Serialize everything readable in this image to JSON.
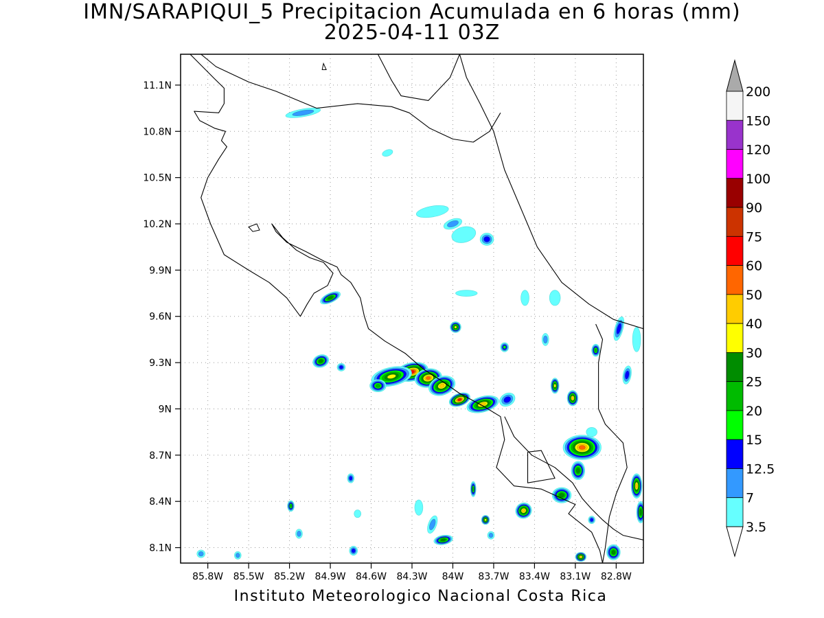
{
  "title": {
    "line1": "IMN/SARAPIQUI_5 Precipitacion Acumulada en 6 horas (mm)",
    "line2": "2025-04-11 03Z"
  },
  "footer": "Instituto Meteorologico Nacional Costa Rica",
  "map": {
    "lon_range": [
      -86.0,
      -82.6
    ],
    "lat_range": [
      8.0,
      11.3
    ],
    "x_ticks": [
      {
        "value": -85.8,
        "label": "85.8W"
      },
      {
        "value": -85.5,
        "label": "85.5W"
      },
      {
        "value": -85.2,
        "label": "85.2W"
      },
      {
        "value": -84.9,
        "label": "84.9W"
      },
      {
        "value": -84.6,
        "label": "84.6W"
      },
      {
        "value": -84.3,
        "label": "84.3W"
      },
      {
        "value": -84.0,
        "label": "84W"
      },
      {
        "value": -83.7,
        "label": "83.7W"
      },
      {
        "value": -83.4,
        "label": "83.4W"
      },
      {
        "value": -83.1,
        "label": "83.1W"
      },
      {
        "value": -82.8,
        "label": "82.8W"
      }
    ],
    "y_ticks": [
      {
        "value": 8.1,
        "label": "8.1N"
      },
      {
        "value": 8.4,
        "label": "8.4N"
      },
      {
        "value": 8.7,
        "label": "8.7N"
      },
      {
        "value": 9.0,
        "label": "9N"
      },
      {
        "value": 9.3,
        "label": "9.3N"
      },
      {
        "value": 9.6,
        "label": "9.6N"
      },
      {
        "value": 9.9,
        "label": "9.9N"
      },
      {
        "value": 10.2,
        "label": "10.2N"
      },
      {
        "value": 10.5,
        "label": "10.5N"
      },
      {
        "value": 10.8,
        "label": "10.8N"
      },
      {
        "value": 11.1,
        "label": "11.1N"
      }
    ],
    "grid": true,
    "coastlines": [
      [
        [
          -85.93,
          11.3
        ],
        [
          -85.75,
          11.14
        ],
        [
          -85.68,
          11.08
        ],
        [
          -85.68,
          10.98
        ],
        [
          -85.72,
          10.92
        ],
        [
          -85.9,
          10.93
        ],
        [
          -85.86,
          10.87
        ],
        [
          -85.75,
          10.82
        ],
        [
          -85.67,
          10.8
        ],
        [
          -85.7,
          10.74
        ],
        [
          -85.66,
          10.7
        ],
        [
          -85.72,
          10.62
        ],
        [
          -85.8,
          10.5
        ],
        [
          -85.85,
          10.37
        ],
        [
          -85.78,
          10.2
        ],
        [
          -85.68,
          10.0
        ],
        [
          -85.5,
          9.9
        ],
        [
          -85.35,
          9.82
        ],
        [
          -85.22,
          9.72
        ],
        [
          -85.12,
          9.6
        ],
        [
          -85.07,
          9.68
        ],
        [
          -85.02,
          9.75
        ],
        [
          -84.92,
          9.8
        ],
        [
          -84.88,
          9.88
        ],
        [
          -84.95,
          9.95
        ],
        [
          -85.05,
          9.98
        ],
        [
          -85.15,
          10.03
        ],
        [
          -85.25,
          10.11
        ],
        [
          -85.33,
          10.2
        ],
        [
          -85.3,
          10.15
        ],
        [
          -85.22,
          10.08
        ],
        [
          -85.08,
          10.02
        ],
        [
          -84.95,
          9.96
        ],
        [
          -84.85,
          9.92
        ],
        [
          -84.82,
          9.87
        ],
        [
          -84.75,
          9.82
        ],
        [
          -84.68,
          9.72
        ],
        [
          -84.65,
          9.6
        ],
        [
          -84.62,
          9.52
        ],
        [
          -84.5,
          9.44
        ],
        [
          -84.35,
          9.36
        ],
        [
          -84.22,
          9.26
        ],
        [
          -84.08,
          9.18
        ],
        [
          -83.95,
          9.1
        ],
        [
          -83.78,
          9.02
        ],
        [
          -83.65,
          8.95
        ],
        [
          -83.62,
          8.8
        ],
        [
          -83.68,
          8.62
        ],
        [
          -83.55,
          8.5
        ],
        [
          -83.35,
          8.48
        ],
        [
          -83.2,
          8.42
        ],
        [
          -83.1,
          8.38
        ],
        [
          -83.15,
          8.32
        ],
        [
          -83.05,
          8.25
        ],
        [
          -82.98,
          8.2
        ],
        [
          -82.92,
          8.08
        ],
        [
          -82.9,
          8.0
        ]
      ],
      [
        [
          -84.55,
          11.3
        ],
        [
          -84.45,
          11.13
        ],
        [
          -84.38,
          11.03
        ],
        [
          -84.18,
          11.0
        ],
        [
          -84.02,
          11.15
        ],
        [
          -83.95,
          11.3
        ]
      ],
      [
        [
          -85.85,
          11.3
        ],
        [
          -85.74,
          11.22
        ],
        [
          -85.5,
          11.12
        ],
        [
          -85.3,
          11.06
        ],
        [
          -85.0,
          10.95
        ],
        [
          -84.7,
          10.98
        ],
        [
          -84.45,
          10.96
        ],
        [
          -84.32,
          10.92
        ],
        [
          -84.17,
          10.82
        ],
        [
          -84.0,
          10.75
        ],
        [
          -83.85,
          10.73
        ],
        [
          -83.73,
          10.8
        ],
        [
          -83.65,
          10.92
        ]
      ],
      [
        [
          -83.95,
          11.3
        ],
        [
          -83.9,
          11.15
        ],
        [
          -83.8,
          10.98
        ],
        [
          -83.7,
          10.8
        ],
        [
          -83.62,
          10.55
        ],
        [
          -83.5,
          10.3
        ],
        [
          -83.38,
          10.05
        ],
        [
          -83.2,
          9.82
        ],
        [
          -83.0,
          9.68
        ],
        [
          -82.82,
          9.58
        ],
        [
          -82.6,
          9.52
        ]
      ],
      [
        [
          -83.62,
          8.95
        ],
        [
          -83.55,
          8.82
        ],
        [
          -83.42,
          8.7
        ],
        [
          -83.25,
          8.62
        ],
        [
          -83.12,
          8.52
        ],
        [
          -83.05,
          8.42
        ],
        [
          -82.98,
          8.35
        ],
        [
          -82.9,
          8.28
        ],
        [
          -82.82,
          8.22
        ],
        [
          -82.75,
          8.18
        ],
        [
          -82.6,
          8.15
        ]
      ]
    ],
    "borders": [
      [
        [
          -82.95,
          9.55
        ],
        [
          -82.9,
          9.45
        ],
        [
          -82.93,
          9.3
        ],
        [
          -82.93,
          9.0
        ],
        [
          -82.88,
          8.9
        ],
        [
          -82.75,
          8.78
        ],
        [
          -82.72,
          8.62
        ],
        [
          -82.8,
          8.45
        ],
        [
          -82.85,
          8.3
        ],
        [
          -82.88,
          8.1
        ],
        [
          -82.9,
          8.0
        ]
      ],
      [
        [
          -83.45,
          8.72
        ],
        [
          -83.35,
          8.73
        ],
        [
          -83.25,
          8.55
        ],
        [
          -83.45,
          8.52
        ],
        [
          -83.45,
          8.72
        ]
      ]
    ]
  },
  "precip_cells": [
    {
      "lon": -84.3,
      "lat": 9.24,
      "rx": 0.12,
      "ry": 0.06,
      "rot": -12,
      "value": 70
    },
    {
      "lon": -84.45,
      "lat": 9.21,
      "rx": 0.15,
      "ry": 0.06,
      "rot": -12,
      "value": 32
    },
    {
      "lon": -84.18,
      "lat": 9.2,
      "rx": 0.1,
      "ry": 0.06,
      "rot": -10,
      "value": 52
    },
    {
      "lon": -84.08,
      "lat": 9.15,
      "rx": 0.1,
      "ry": 0.06,
      "rot": -20,
      "value": 45
    },
    {
      "lon": -83.95,
      "lat": 9.06,
      "rx": 0.08,
      "ry": 0.04,
      "rot": -20,
      "value": 62
    },
    {
      "lon": -83.78,
      "lat": 9.03,
      "rx": 0.12,
      "ry": 0.05,
      "rot": -15,
      "value": 42
    },
    {
      "lon": -84.55,
      "lat": 9.15,
      "rx": 0.06,
      "ry": 0.04,
      "rot": 0,
      "value": 22
    },
    {
      "lon": -84.97,
      "lat": 9.31,
      "rx": 0.06,
      "ry": 0.04,
      "rot": -20,
      "value": 27
    },
    {
      "lon": -84.82,
      "lat": 9.27,
      "rx": 0.03,
      "ry": 0.025,
      "rot": 0,
      "value": 14
    },
    {
      "lon": -84.9,
      "lat": 9.72,
      "rx": 0.08,
      "ry": 0.03,
      "rot": -25,
      "value": 28
    },
    {
      "lon": -85.1,
      "lat": 10.92,
      "rx": 0.13,
      "ry": 0.025,
      "rot": -10,
      "value": 9
    },
    {
      "lon": -84.0,
      "lat": 10.2,
      "rx": 0.07,
      "ry": 0.03,
      "rot": -20,
      "value": 8
    },
    {
      "lon": -83.75,
      "lat": 10.1,
      "rx": 0.05,
      "ry": 0.04,
      "rot": 0,
      "value": 14
    },
    {
      "lon": -83.9,
      "lat": 9.75,
      "rx": 0.08,
      "ry": 0.02,
      "rot": 0,
      "value": 5
    },
    {
      "lon": -83.98,
      "lat": 9.53,
      "rx": 0.04,
      "ry": 0.035,
      "rot": 0,
      "value": 35
    },
    {
      "lon": -83.62,
      "lat": 9.4,
      "rx": 0.03,
      "ry": 0.03,
      "rot": 0,
      "value": 18
    },
    {
      "lon": -83.6,
      "lat": 9.06,
      "rx": 0.06,
      "ry": 0.04,
      "rot": -30,
      "value": 14
    },
    {
      "lon": -83.25,
      "lat": 9.15,
      "rx": 0.03,
      "ry": 0.05,
      "rot": 0,
      "value": 35
    },
    {
      "lon": -83.12,
      "lat": 9.07,
      "rx": 0.04,
      "ry": 0.05,
      "rot": 0,
      "value": 45
    },
    {
      "lon": -83.05,
      "lat": 8.75,
      "rx": 0.14,
      "ry": 0.08,
      "rot": 0,
      "value": 50
    },
    {
      "lon": -83.08,
      "lat": 8.6,
      "rx": 0.05,
      "ry": 0.06,
      "rot": 0,
      "value": 26
    },
    {
      "lon": -83.2,
      "lat": 8.44,
      "rx": 0.07,
      "ry": 0.05,
      "rot": 0,
      "value": 26
    },
    {
      "lon": -83.48,
      "lat": 8.34,
      "rx": 0.06,
      "ry": 0.05,
      "rot": -30,
      "value": 48
    },
    {
      "lon": -83.76,
      "lat": 8.28,
      "rx": 0.03,
      "ry": 0.03,
      "rot": 0,
      "value": 35
    },
    {
      "lon": -84.07,
      "lat": 8.15,
      "rx": 0.07,
      "ry": 0.03,
      "rot": -10,
      "value": 28
    },
    {
      "lon": -84.15,
      "lat": 8.25,
      "rx": 0.03,
      "ry": 0.06,
      "rot": 20,
      "value": 12
    },
    {
      "lon": -83.85,
      "lat": 8.48,
      "rx": 0.02,
      "ry": 0.05,
      "rot": 0,
      "value": 22
    },
    {
      "lon": -84.75,
      "lat": 8.55,
      "rx": 0.025,
      "ry": 0.03,
      "rot": 0,
      "value": 14
    },
    {
      "lon": -85.19,
      "lat": 8.37,
      "rx": 0.025,
      "ry": 0.035,
      "rot": 0,
      "value": 22
    },
    {
      "lon": -84.73,
      "lat": 8.08,
      "rx": 0.03,
      "ry": 0.03,
      "rot": 0,
      "value": 14
    },
    {
      "lon": -85.85,
      "lat": 8.06,
      "rx": 0.03,
      "ry": 0.025,
      "rot": 0,
      "value": 12
    },
    {
      "lon": -85.58,
      "lat": 8.05,
      "rx": 0.025,
      "ry": 0.025,
      "rot": 0,
      "value": 12
    },
    {
      "lon": -85.13,
      "lat": 8.19,
      "rx": 0.025,
      "ry": 0.03,
      "rot": 0,
      "value": 9
    },
    {
      "lon": -82.65,
      "lat": 8.5,
      "rx": 0.04,
      "ry": 0.08,
      "rot": 0,
      "value": 45
    },
    {
      "lon": -82.62,
      "lat": 8.33,
      "rx": 0.03,
      "ry": 0.07,
      "rot": 0,
      "value": 26
    },
    {
      "lon": -82.82,
      "lat": 8.07,
      "rx": 0.05,
      "ry": 0.05,
      "rot": 0,
      "value": 27
    },
    {
      "lon": -83.06,
      "lat": 8.04,
      "rx": 0.04,
      "ry": 0.03,
      "rot": 0,
      "value": 45
    },
    {
      "lon": -82.78,
      "lat": 9.52,
      "rx": 0.03,
      "ry": 0.08,
      "rot": 15,
      "value": 14
    },
    {
      "lon": -82.72,
      "lat": 9.22,
      "rx": 0.03,
      "ry": 0.06,
      "rot": 10,
      "value": 14
    },
    {
      "lon": -82.95,
      "lat": 9.38,
      "rx": 0.03,
      "ry": 0.04,
      "rot": 0,
      "value": 22
    },
    {
      "lon": -83.32,
      "lat": 9.45,
      "rx": 0.025,
      "ry": 0.04,
      "rot": 0,
      "value": 12
    },
    {
      "lon": -83.25,
      "lat": 9.72,
      "rx": 0.04,
      "ry": 0.05,
      "rot": 0,
      "value": 5
    },
    {
      "lon": -83.92,
      "lat": 10.13,
      "rx": 0.09,
      "ry": 0.05,
      "rot": -15,
      "value": 5
    },
    {
      "lon": -84.15,
      "lat": 10.28,
      "rx": 0.12,
      "ry": 0.035,
      "rot": -10,
      "value": 5
    },
    {
      "lon": -84.48,
      "lat": 10.66,
      "rx": 0.04,
      "ry": 0.02,
      "rot": -20,
      "value": 5
    },
    {
      "lon": -83.47,
      "lat": 9.72,
      "rx": 0.03,
      "ry": 0.05,
      "rot": 0,
      "value": 5
    },
    {
      "lon": -84.25,
      "lat": 8.36,
      "rx": 0.03,
      "ry": 0.05,
      "rot": 0,
      "value": 5
    },
    {
      "lon": -84.7,
      "lat": 8.32,
      "rx": 0.025,
      "ry": 0.025,
      "rot": 0,
      "value": 5
    },
    {
      "lon": -82.65,
      "lat": 9.45,
      "rx": 0.03,
      "ry": 0.08,
      "rot": 0,
      "value": 5
    },
    {
      "lon": -82.98,
      "lat": 8.85,
      "rx": 0.04,
      "ry": 0.03,
      "rot": 0,
      "value": 5
    },
    {
      "lon": -83.72,
      "lat": 8.18,
      "rx": 0.025,
      "ry": 0.025,
      "rot": 0,
      "value": 12
    },
    {
      "lon": -82.98,
      "lat": 8.28,
      "rx": 0.025,
      "ry": 0.025,
      "rot": 0,
      "value": 14
    }
  ],
  "legend": {
    "labels": [
      "200",
      "150",
      "120",
      "100",
      "90",
      "75",
      "60",
      "50",
      "40",
      "30",
      "25",
      "20",
      "15",
      "12.5",
      "7",
      "3.5"
    ],
    "colors": [
      "#f5f5f5",
      "#9933cc",
      "#ff00ff",
      "#990000",
      "#cc3300",
      "#ff0000",
      "#ff6600",
      "#ffcc00",
      "#ffff00",
      "#008c00",
      "#00bb00",
      "#00ff00",
      "#0000ff",
      "#3399ff",
      "#66ffff"
    ],
    "over_color": "#aaaaaa",
    "under_color": "#ffffff"
  }
}
